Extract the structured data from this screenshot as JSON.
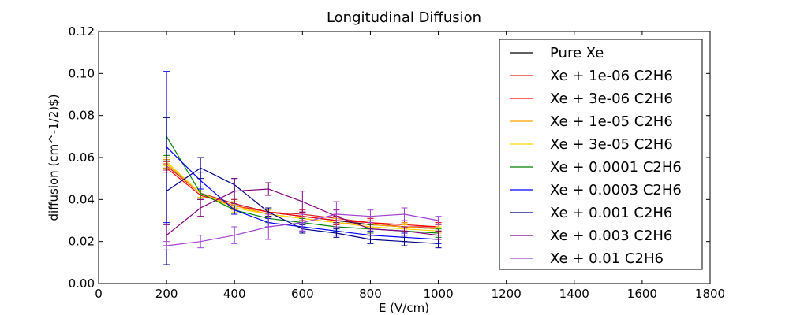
{
  "chart_data": {
    "type": "line",
    "title": "Longitudinal Diffusion",
    "xlabel": "E (V/cm)",
    "ylabel": "diffusion (cm^-1/2)$)",
    "xlim": [
      0,
      1800
    ],
    "ylim": [
      0,
      0.12
    ],
    "x_ticks": [
      0,
      200,
      400,
      600,
      800,
      1000,
      1200,
      1400,
      1600,
      1800
    ],
    "x_tick_labels": [
      "0",
      "200",
      "400",
      "600",
      "800",
      "1000",
      "1200",
      "1400",
      "1600",
      "1800"
    ],
    "y_ticks": [
      0,
      0.02,
      0.04,
      0.06,
      0.08,
      0.1,
      0.12
    ],
    "y_tick_labels": [
      "0.00",
      "0.02",
      "0.04",
      "0.06",
      "0.08",
      "0.10",
      "0.12"
    ],
    "grid": false,
    "legend_position": "top-right",
    "x": [
      200,
      300,
      400,
      500,
      600,
      700,
      800,
      900,
      1000
    ],
    "series": [
      {
        "name": "Pure Xe",
        "color": "#000000",
        "values": [
          0.057,
          0.043,
          0.038,
          0.034,
          0.032,
          0.03,
          0.028,
          0.027,
          0.026
        ],
        "errors": [
          0.002,
          0.002,
          0.002,
          0.002,
          0.002,
          0.002,
          0.002,
          0.002,
          0.002
        ]
      },
      {
        "name": "Xe + 1e-06 C2H6",
        "color": "#d62728",
        "values": [
          0.056,
          0.043,
          0.038,
          0.034,
          0.033,
          0.031,
          0.029,
          0.027,
          0.027
        ],
        "errors": [
          0.002,
          0.002,
          0.002,
          0.002,
          0.002,
          0.002,
          0.002,
          0.002,
          0.002
        ]
      },
      {
        "name": "Xe + 3e-06 C2H6",
        "color": "#ff0000",
        "values": [
          0.055,
          0.042,
          0.037,
          0.034,
          0.032,
          0.03,
          0.029,
          0.028,
          0.027
        ],
        "errors": [
          0.002,
          0.002,
          0.002,
          0.002,
          0.002,
          0.002,
          0.002,
          0.002,
          0.002
        ]
      },
      {
        "name": "Xe + 1e-05 C2H6",
        "color": "#ffa500",
        "values": [
          0.057,
          0.043,
          0.037,
          0.033,
          0.031,
          0.029,
          0.028,
          0.027,
          0.026
        ],
        "errors": [
          0.002,
          0.002,
          0.002,
          0.002,
          0.002,
          0.002,
          0.002,
          0.002,
          0.002
        ]
      },
      {
        "name": "Xe + 3e-05 C2H6",
        "color": "#ffd700",
        "values": [
          0.058,
          0.043,
          0.036,
          0.033,
          0.031,
          0.029,
          0.027,
          0.026,
          0.025
        ],
        "errors": [
          0.002,
          0.002,
          0.002,
          0.002,
          0.002,
          0.002,
          0.002,
          0.002,
          0.002
        ]
      },
      {
        "name": "Xe + 0.0001 C2H6",
        "color": "#008000",
        "values": [
          0.07,
          0.043,
          0.035,
          0.031,
          0.029,
          0.027,
          0.026,
          0.025,
          0.024
        ],
        "errors": [
          0.009,
          0.003,
          0.002,
          0.002,
          0.002,
          0.002,
          0.002,
          0.002,
          0.002
        ]
      },
      {
        "name": "Xe + 0.0003 C2H6",
        "color": "#0000ff",
        "values": [
          0.065,
          0.049,
          0.035,
          0.029,
          0.027,
          0.025,
          0.023,
          0.022,
          0.021
        ],
        "errors": [
          0.036,
          0.004,
          0.002,
          0.002,
          0.002,
          0.002,
          0.002,
          0.002,
          0.002
        ]
      },
      {
        "name": "Xe + 0.001 C2H6",
        "color": "#00008b",
        "values": [
          0.044,
          0.055,
          0.047,
          0.034,
          0.026,
          0.024,
          0.021,
          0.02,
          0.019
        ],
        "errors": [
          0.035,
          0.005,
          0.003,
          0.002,
          0.002,
          0.002,
          0.002,
          0.002,
          0.002
        ]
      },
      {
        "name": "Xe + 0.003 C2H6",
        "color": "#800080",
        "values": [
          0.023,
          0.036,
          0.044,
          0.045,
          0.039,
          0.032,
          0.026,
          0.025,
          0.023
        ],
        "errors": [
          0.005,
          0.004,
          0.006,
          0.003,
          0.005,
          0.003,
          0.003,
          0.002,
          0.002
        ]
      },
      {
        "name": "Xe + 0.01 C2H6",
        "color": "#a040d0",
        "values": [
          0.018,
          0.02,
          0.023,
          0.027,
          0.029,
          0.033,
          0.032,
          0.033,
          0.03
        ],
        "errors": [
          0.002,
          0.003,
          0.004,
          0.006,
          0.004,
          0.006,
          0.003,
          0.003,
          0.002
        ]
      }
    ]
  }
}
